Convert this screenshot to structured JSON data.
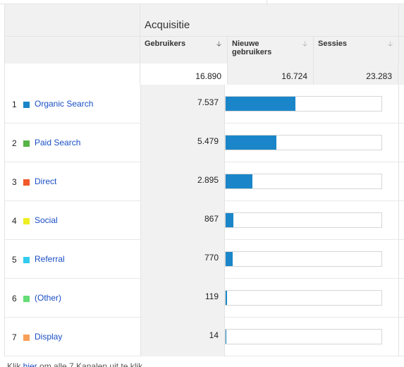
{
  "header": {
    "group_title": "Acquisitie",
    "columns": [
      {
        "label_line1": "Gebruikers",
        "label_line2": "",
        "sort_icon": "arrow-down-icon",
        "active": true
      },
      {
        "label_line1": "Nieuwe",
        "label_line2": "gebruikers",
        "sort_icon": "arrow-down-icon",
        "active": false
      },
      {
        "label_line1": "Sessies",
        "label_line2": "",
        "sort_icon": "arrow-down-icon",
        "active": false
      }
    ]
  },
  "totals": {
    "gebruikers": "16.890",
    "nieuwe_gebruikers": "16.724",
    "sessies": "23.283"
  },
  "rows": [
    {
      "index": "1",
      "name": "Organic Search",
      "color": "#1a86c9",
      "value": "7.537",
      "bar_fraction": 0.4463
    },
    {
      "index": "2",
      "name": "Paid Search",
      "color": "#57b447",
      "value": "5.479",
      "bar_fraction": 0.3244
    },
    {
      "index": "3",
      "name": "Direct",
      "color": "#f1592a",
      "value": "2.895",
      "bar_fraction": 0.1714
    },
    {
      "index": "4",
      "name": "Social",
      "color": "#eeee22",
      "value": "867",
      "bar_fraction": 0.0513
    },
    {
      "index": "5",
      "name": "Referral",
      "color": "#33ccee",
      "value": "770",
      "bar_fraction": 0.0456
    },
    {
      "index": "6",
      "name": "(Other)",
      "color": "#66dd77",
      "value": "119",
      "bar_fraction": 0.007
    },
    {
      "index": "7",
      "name": "Display",
      "color": "#f6a05a",
      "value": "14",
      "bar_fraction": 0.0008
    }
  ],
  "bar_color": "#1a86c9",
  "footer": {
    "prefix": "Klik ",
    "link": "hier",
    "suffix": " om alle 7 Kanalen uit te klik..."
  }
}
